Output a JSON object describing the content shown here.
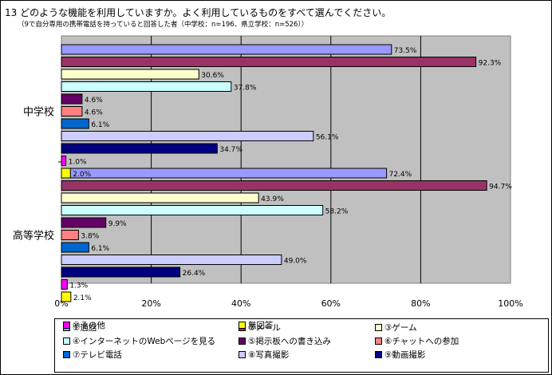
{
  "title": "13  どのような機能を利用していますか。よく利用しているものをすべて選んでください。",
  "subtitle": "（9で自分専用の携帯電話を持っていると回答した者（中学校：n=196、県立学校：n=526））",
  "chart_data": {
    "type": "bar",
    "orientation": "horizontal",
    "xlim": [
      0,
      100
    ],
    "x_ticks": [
      "0%",
      "20%",
      "40%",
      "60%",
      "80%",
      "100%"
    ],
    "grid": true,
    "legend_position": "bottom",
    "categories": [
      "中学校",
      "高等学校"
    ],
    "series": [
      {
        "name": "①通話",
        "color": "#9999ff",
        "values": [
          73.5,
          72.4
        ],
        "labels": [
          "73.5%",
          "72.4%"
        ]
      },
      {
        "name": "②メール",
        "color": "#993366",
        "values": [
          92.3,
          94.7
        ],
        "labels": [
          "92.3%",
          "94.7%"
        ]
      },
      {
        "name": "③ゲーム",
        "color": "#ffffcc",
        "values": [
          30.6,
          43.9
        ],
        "labels": [
          "30.6%",
          "43.9%"
        ]
      },
      {
        "name": "④インターネットのWebページを見る",
        "color": "#ccffff",
        "values": [
          37.8,
          58.2
        ],
        "labels": [
          "37.8%",
          "58.2%"
        ]
      },
      {
        "name": "⑤掲示板への書き込み",
        "color": "#660066",
        "values": [
          4.6,
          9.9
        ],
        "labels": [
          "4.6%",
          "9.9%"
        ]
      },
      {
        "name": "⑥チャットへの参加",
        "color": "#ff8080",
        "values": [
          4.6,
          3.8
        ],
        "labels": [
          "4.6%",
          "3.8%"
        ]
      },
      {
        "name": "⑦テレビ電話",
        "color": "#0066cc",
        "values": [
          6.1,
          6.1
        ],
        "labels": [
          "6.1%",
          "6.1%"
        ]
      },
      {
        "name": "⑧写真撮影",
        "color": "#ccccff",
        "values": [
          56.1,
          49.0
        ],
        "labels": [
          "56.1%",
          "49.0%"
        ]
      },
      {
        "name": "⑨動画撮影",
        "color": "#000080",
        "values": [
          34.7,
          26.4
        ],
        "labels": [
          "34.7%",
          "26.4%"
        ]
      },
      {
        "name": "⑩その他",
        "color": "#ff00ff",
        "values": [
          1.0,
          1.3
        ],
        "labels": [
          "1.0%",
          "1.3%"
        ]
      },
      {
        "name": "無回答",
        "color": "#ffff00",
        "values": [
          2.0,
          2.1
        ],
        "labels": [
          "2.0%",
          "2.1%"
        ]
      }
    ]
  }
}
